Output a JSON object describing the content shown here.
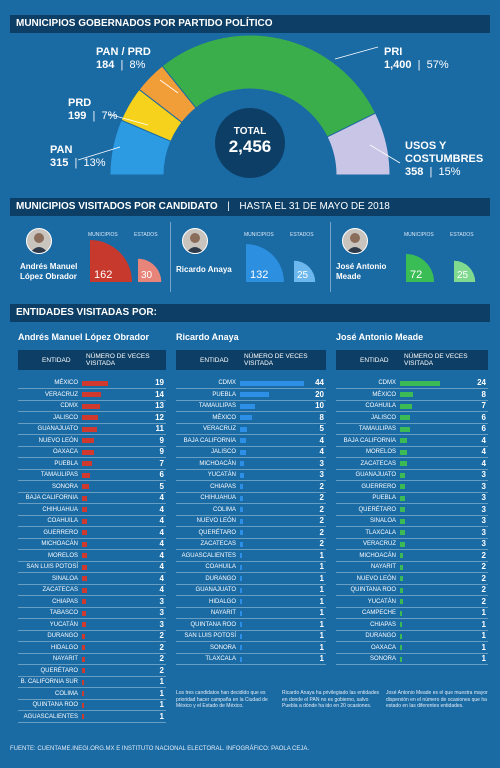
{
  "header": {
    "title": "MUNICIPIOS GOBERNADOS POR PARTIDO POLÍTICO"
  },
  "chart_data": [
    {
      "type": "pie",
      "title": "MUNICIPIOS GOBERNADOS POR PARTIDO POLÍTICO",
      "total_label": "TOTAL",
      "total_value": "2,456",
      "slices": [
        {
          "name": "PAN",
          "value": 315,
          "pct": "13%",
          "value_label": "315",
          "color": "#2c9be2"
        },
        {
          "name": "PRD",
          "value": 199,
          "pct": "7%",
          "value_label": "199",
          "color": "#f7d21c"
        },
        {
          "name": "PAN / PRD",
          "value": 184,
          "pct": "8%",
          "value_label": "184",
          "color": "#f29e38"
        },
        {
          "name": "PRI",
          "value": 1400,
          "pct": "57%",
          "value_label": "1,400",
          "color": "#3aae4a"
        },
        {
          "name": "USOS Y COSTUMBRES",
          "value": 358,
          "pct": "15%",
          "value_label": "358",
          "color": "#c9c5e6"
        }
      ]
    },
    {
      "type": "pie",
      "title": "MUNICIPIOS VISITADOS POR CANDIDATO",
      "subtitle": "HASTA EL 31 DE MAYO DE 2018",
      "col_municipios": "MUNICIPIOS",
      "col_estados": "ESTADOS",
      "candidates": [
        {
          "name_line1": "Andrés Manuel",
          "name_line2": "López Obrador",
          "municipios": 162,
          "estados": 30,
          "color": "#c7382d",
          "light": "#e8857b"
        },
        {
          "name_line1": "Ricardo Anaya",
          "name_line2": "",
          "municipios": 132,
          "estados": 25,
          "color": "#2c8fe0",
          "light": "#6cb8ee"
        },
        {
          "name_line1": "José Antonio",
          "name_line2": "Meade",
          "municipios": 72,
          "estados": 25,
          "color": "#3bbd55",
          "light": "#7fd98f"
        }
      ]
    },
    {
      "type": "bar",
      "title": "ENTIDADES VISITADAS POR:",
      "col_entidad": "ENTIDAD",
      "col_veces": "NÚMERO DE VECES VISITADA",
      "series": [
        {
          "name": "Andrés Manuel López Obrador",
          "color": "#d0392d",
          "categories": [
            "MÉXICO",
            "VERACRUZ",
            "CDMX",
            "JALISCO",
            "GUANAJUATO",
            "NUEVO LEÓN",
            "OAXACA",
            "PUEBLA",
            "TAMAULIPAS",
            "SONORA",
            "BAJA CALIFORNIA",
            "CHIHUAHUA",
            "COAHUILA",
            "GUERRERO",
            "MICHOACÁN",
            "MORELOS",
            "SAN LUIS POTOSÍ",
            "SINALOA",
            "ZACATECAS",
            "CHIAPAS",
            "TABASCO",
            "YUCATÁN",
            "DURANGO",
            "HIDALGO",
            "NAYARIT",
            "QUERÉTARO",
            "B. CALIFORNIA SUR",
            "COLIMA",
            "QUINTANA ROO",
            "AGUASCALIENTES"
          ],
          "values": [
            19,
            14,
            13,
            12,
            11,
            9,
            9,
            7,
            6,
            5,
            4,
            4,
            4,
            4,
            4,
            4,
            4,
            4,
            4,
            3,
            3,
            3,
            2,
            2,
            2,
            2,
            1,
            1,
            1,
            1
          ]
        },
        {
          "name": "Ricardo Anaya",
          "color": "#2d8fe6",
          "categories": [
            "CDMX",
            "PUEBLA",
            "TAMAULIPAS",
            "MÉXICO",
            "VERACRUZ",
            "BAJA CALIFORNIA",
            "JALISCO",
            "MICHOACÁN",
            "YUCATÁN",
            "CHIAPAS",
            "CHIHUAHUA",
            "COLIMA",
            "NUEVO LEÓN",
            "QUERÉTARO",
            "ZACATECAS",
            "AGUASCALIENTES",
            "COAHUILA",
            "DURANGO",
            "GUANAJUATO",
            "HIDALGO",
            "NAYARIT",
            "QUINTANA ROO",
            "SAN LUIS POTOSÍ",
            "SONORA",
            "TLAXCALA"
          ],
          "values": [
            44,
            20,
            10,
            8,
            5,
            4,
            4,
            3,
            3,
            2,
            2,
            2,
            2,
            2,
            2,
            1,
            1,
            1,
            1,
            1,
            1,
            1,
            1,
            1,
            1
          ]
        },
        {
          "name": "José Antonio Meade",
          "color": "#3cba54",
          "categories": [
            "CDMX",
            "MÉXICO",
            "COAHUILA",
            "JALISCO",
            "TAMAULIPAS",
            "BAJA CALIFORNIA",
            "MORELOS",
            "ZACATECAS",
            "GUANAJUATO",
            "GUERRERO",
            "PUEBLA",
            "QUERÉTARO",
            "SINALOA",
            "TLAXCALA",
            "VERACRUZ",
            "MICHOACÁN",
            "NAYARIT",
            "NUEVO LEÓN",
            "QUINTANA ROO",
            "YUCATÁN",
            "CAMPECHE",
            "CHIAPAS",
            "DURANGO",
            "OAXACA",
            "SONORA"
          ],
          "values": [
            24,
            8,
            7,
            6,
            6,
            4,
            4,
            4,
            3,
            3,
            3,
            3,
            3,
            3,
            3,
            2,
            2,
            2,
            2,
            2,
            1,
            1,
            1,
            1,
            1
          ]
        }
      ]
    }
  ],
  "notes": [
    "Los tres candidatos han decidido que es prioridad hacer campaña en la Ciudad de México y el Estado de México.",
    "Ricardo Anaya ha privilegiado las entidades en donde el PAN no es gobierno, salvo Puebla a dónde ha ido en 20 ocasiones.",
    "José Antonio Meade es el que muestra mayor dispersión en el número de ocasiones que ha estado en las diferentes entidades."
  ],
  "footer": "FUENTE: CUENTAME.INEGI.ORG.MX E INSTITUTO NACIONAL ELECTORAL. INFOGRÁFICO: PAOLA CEJA."
}
